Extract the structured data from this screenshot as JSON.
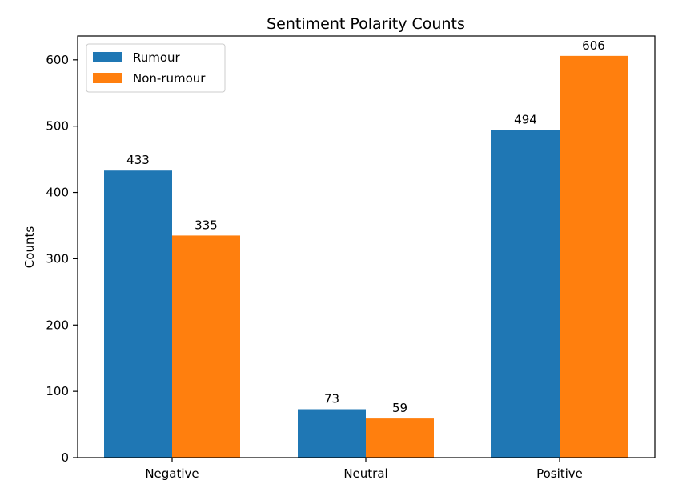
{
  "chart_data": {
    "type": "bar",
    "title": "Sentiment Polarity Counts",
    "xlabel": "",
    "ylabel": "Counts",
    "categories": [
      "Negative",
      "Neutral",
      "Positive"
    ],
    "series": [
      {
        "name": "Rumour",
        "values": [
          433,
          73,
          494
        ],
        "color": "#1f77b4"
      },
      {
        "name": "Non-rumour",
        "values": [
          335,
          59,
          606
        ],
        "color": "#ff7f0e"
      }
    ],
    "ylim": [
      0,
      636
    ],
    "yticks": [
      0,
      100,
      200,
      300,
      400,
      500,
      600
    ],
    "grid": false,
    "legend_position": "top-left",
    "data_labels": true
  }
}
